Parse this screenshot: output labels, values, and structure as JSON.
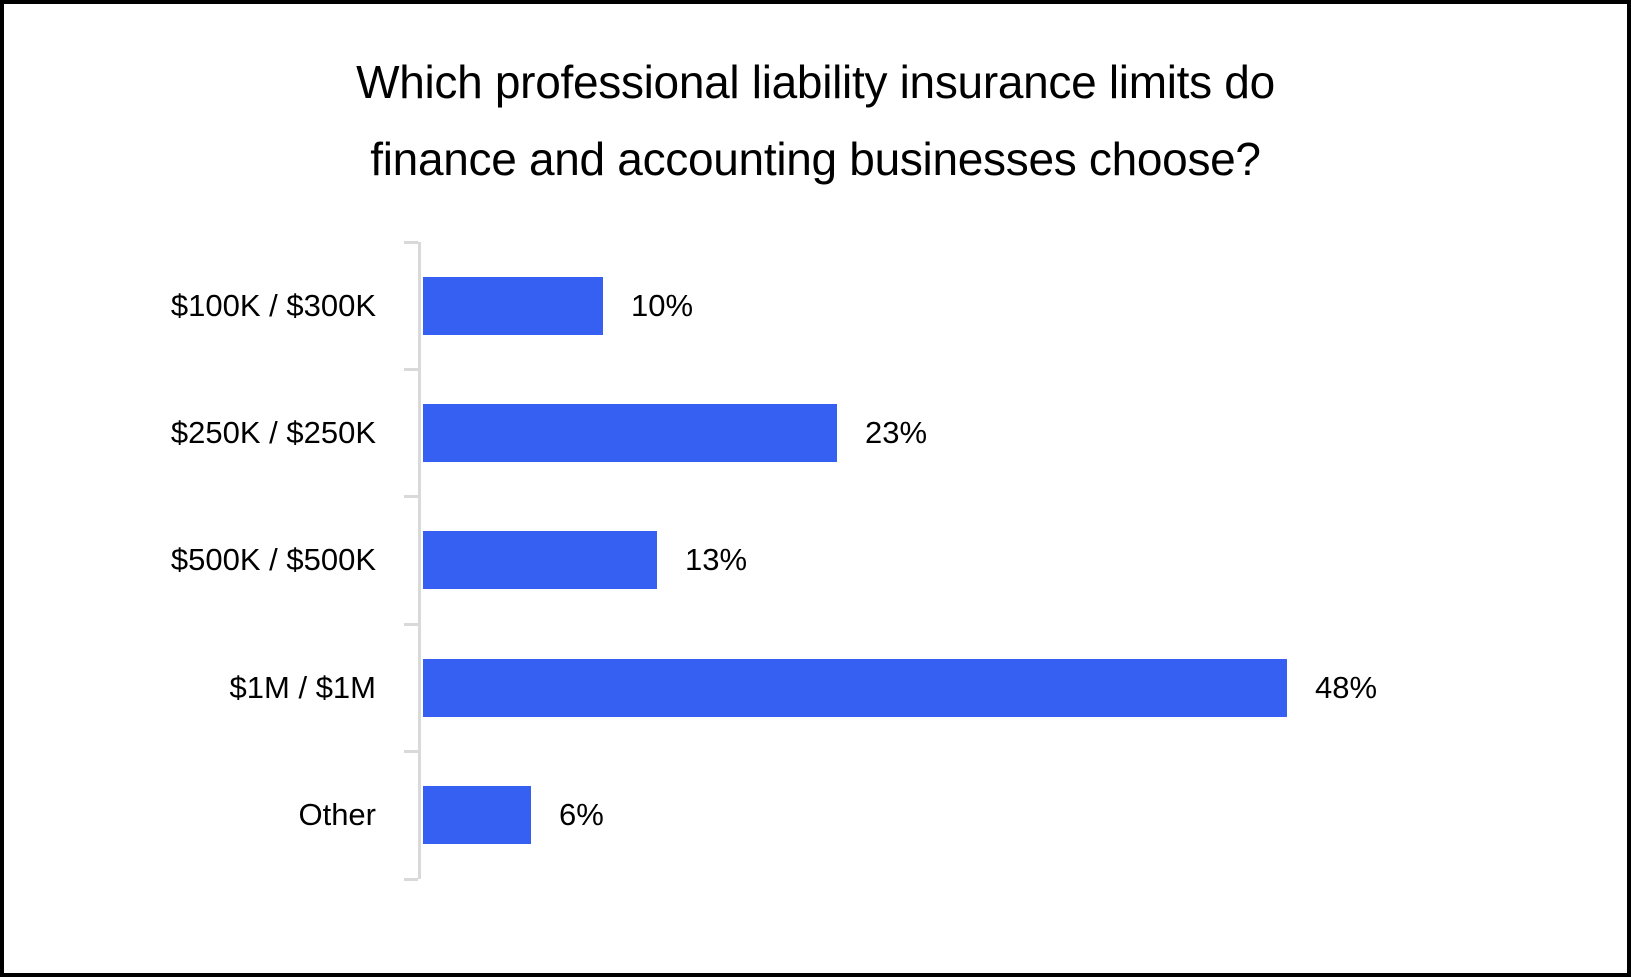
{
  "title_lines": [
    "Which professional liability insurance limits do",
    "finance and accounting businesses choose?"
  ],
  "chart_data": {
    "type": "bar",
    "orientation": "horizontal",
    "title": "Which professional liability insurance limits do finance and accounting businesses choose?",
    "categories": [
      "$100K / $300K",
      "$250K / $250K",
      "$500K / $500K",
      "$1M / $1M",
      "Other"
    ],
    "values": [
      10,
      23,
      13,
      48,
      6
    ],
    "percent_labels": [
      "10%",
      "23%",
      "13%",
      "48%",
      "6%"
    ],
    "unit": "%",
    "xlabel": "",
    "ylabel": "",
    "xlim": [
      0,
      50
    ],
    "grid": false,
    "legend": "none",
    "bar_color": "#3560f2",
    "axis_color": "#d9d9d9",
    "text_color": "#000000",
    "background_color": "#ffffff",
    "border_color": "#000000"
  }
}
